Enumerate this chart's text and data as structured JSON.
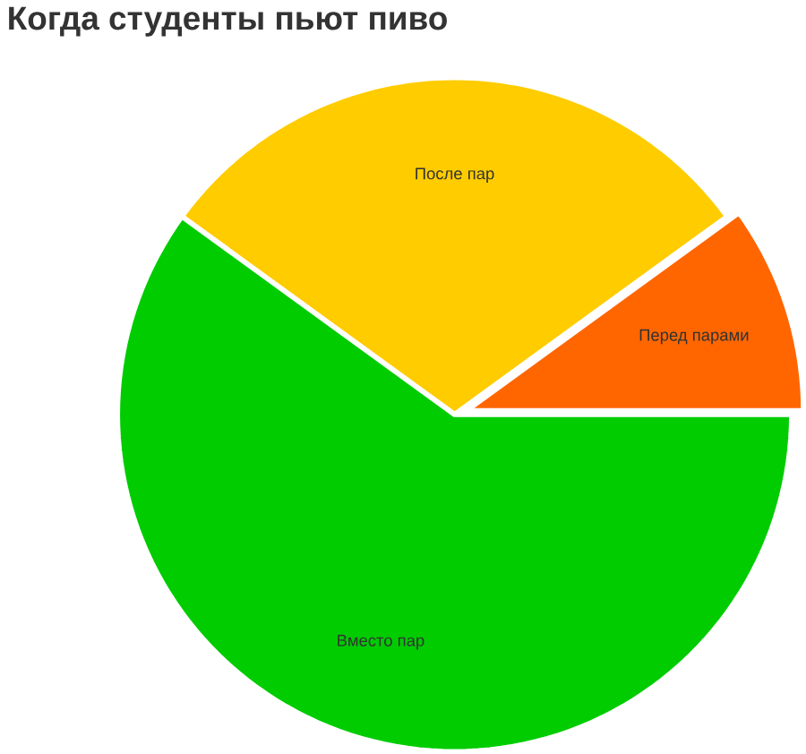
{
  "chart_data": {
    "type": "pie",
    "title": "Когда студенты пьют пиво",
    "categories": [
      "Перед парами",
      "После пар",
      "Вместо пар"
    ],
    "values": [
      10,
      30,
      60
    ],
    "colors": [
      "#ff6600",
      "#ffcc00",
      "#00cc00"
    ]
  }
}
